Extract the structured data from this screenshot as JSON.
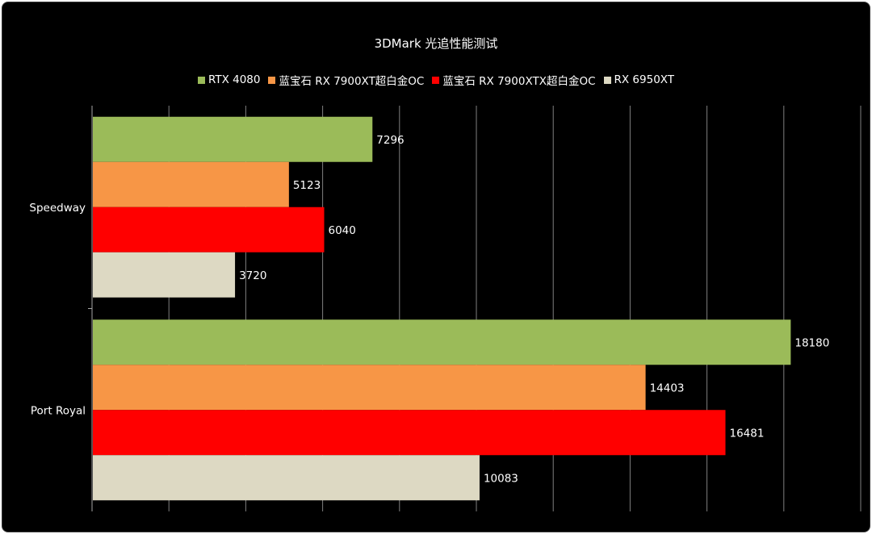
{
  "chart_data": {
    "type": "bar",
    "orientation": "horizontal",
    "title": "3DMark 光追性能测试",
    "categories": [
      "Speedway",
      "Port Royal"
    ],
    "series": [
      {
        "name": "RTX 4080",
        "color": "#9bbb59",
        "values": [
          7296,
          18180
        ]
      },
      {
        "name": "蓝宝石 RX 7900XT超白金OC",
        "color": "#f79646",
        "values": [
          5123,
          14403
        ]
      },
      {
        "name": "蓝宝石 RX 7900XTX超白金OC",
        "color": "#ff0000",
        "values": [
          6040,
          16481
        ]
      },
      {
        "name": "RX 6950XT",
        "color": "#ddd9c3",
        "values": [
          3720,
          10083
        ]
      }
    ],
    "xlim": [
      0,
      20000
    ],
    "grid": true,
    "legend_position": "top"
  }
}
